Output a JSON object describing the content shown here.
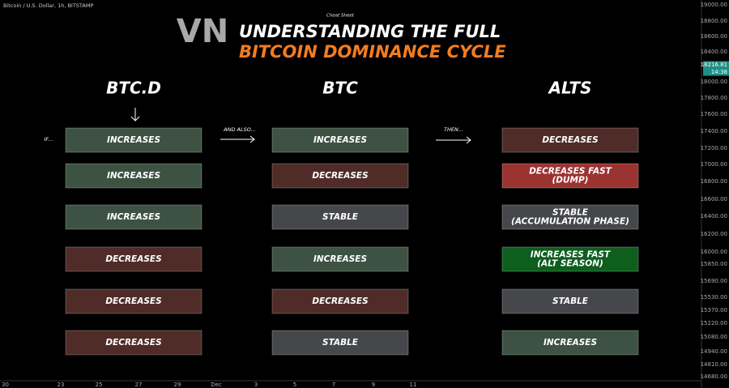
{
  "header": {
    "symbol": "Bitcoin / U.S. Dollar, 1h, BITSTAMP",
    "note": "Cheat Sheet",
    "logo": "VN",
    "title_line1": "UNDERSTANDING THE FULL",
    "title_line2": "BITCOIN DOMINANCE CYCLE"
  },
  "columns": [
    "BTC.D",
    "BTC",
    "ALTS"
  ],
  "connectors": [
    "IF...",
    "AND ALSO...",
    "THEN..."
  ],
  "rows": [
    [
      {
        "lines": [
          "INCREASES"
        ],
        "color": "#3d5243"
      },
      {
        "lines": [
          "INCREASES"
        ],
        "color": "#3d5243"
      },
      {
        "lines": [
          "DECREASES"
        ],
        "color": "#4f2c28"
      }
    ],
    [
      {
        "lines": [
          "INCREASES"
        ],
        "color": "#3d5243"
      },
      {
        "lines": [
          "DECREASES"
        ],
        "color": "#4f2c28"
      },
      {
        "lines": [
          "DECREASES FAST",
          "(DUMP)"
        ],
        "color": "#9b3331"
      }
    ],
    [
      {
        "lines": [
          "INCREASES"
        ],
        "color": "#3d5243"
      },
      {
        "lines": [
          "STABLE"
        ],
        "color": "#45474b"
      },
      {
        "lines": [
          "STABLE",
          "(ACCUMULATION PHASE)"
        ],
        "color": "#45474b"
      }
    ],
    [
      {
        "lines": [
          "DECREASES"
        ],
        "color": "#4f2c28"
      },
      {
        "lines": [
          "INCREASES"
        ],
        "color": "#3d5243"
      },
      {
        "lines": [
          "INCREASES FAST",
          "(ALT SEASON)"
        ],
        "color": "#0e5e1e"
      }
    ],
    [
      {
        "lines": [
          "DECREASES"
        ],
        "color": "#4f2c28"
      },
      {
        "lines": [
          "DECREASES"
        ],
        "color": "#4f2c28"
      },
      {
        "lines": [
          "STABLE"
        ],
        "color": "#45474b"
      }
    ],
    [
      {
        "lines": [
          "DECREASES"
        ],
        "color": "#4f2c28"
      },
      {
        "lines": [
          "STABLE"
        ],
        "color": "#45474b"
      },
      {
        "lines": [
          "INCREASES"
        ],
        "color": "#3d5243"
      }
    ]
  ],
  "price_axis": [
    "19000.00",
    "18800.00",
    "18600.00",
    "18400.00",
    "18216.81",
    "14:38",
    "18000.00",
    "17800.00",
    "17600.00",
    "17400.00",
    "17200.00",
    "17000.00",
    "16800.00",
    "16600.00",
    "16400.00",
    "16200.00",
    "16000.00",
    "15850.00",
    "15690.00",
    "15530.00",
    "15370.00",
    "15220.00",
    "15080.00",
    "14940.00",
    "14810.00",
    "14680.00"
  ],
  "time_axis": [
    "30",
    "23",
    "25",
    "27",
    "29",
    "Dec",
    "3",
    "5",
    "7",
    "9",
    "11"
  ]
}
